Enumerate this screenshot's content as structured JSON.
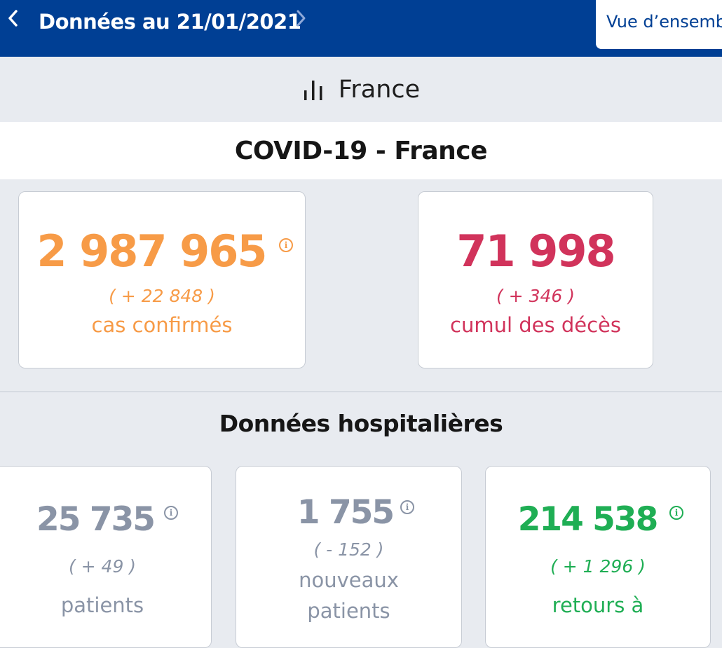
{
  "header": {
    "date_title": "Données au 21/01/2021",
    "overview_label": "Vue d’ensemb"
  },
  "region": {
    "name": "France"
  },
  "section": {
    "title": "COVID-19 - France"
  },
  "cards": {
    "cases": {
      "value": "2 987 965",
      "delta": "( + 22 848 )",
      "label": "cas confirmés",
      "color": "#f79b47"
    },
    "deaths": {
      "value": "71 998",
      "delta": "( + 346 )",
      "label": "cumul des décès",
      "color": "#d1335b"
    }
  },
  "hospital": {
    "title": "Données hospitalières",
    "cards": [
      {
        "value": "25 735",
        "delta": "( + 49 )",
        "label": "patients",
        "color": "#8a94a6"
      },
      {
        "value": "1 755",
        "delta": "( - 152 )",
        "label_line1": "nouveaux",
        "label_line2": "patients",
        "color": "#8a94a6"
      },
      {
        "value": "214 538",
        "delta": "( + 1 296 )",
        "label": "retours à",
        "color": "#1fae54"
      }
    ]
  },
  "icons": {
    "prev": "chevron-left-icon",
    "next": "chevron-right-icon",
    "chart": "bar-chart-icon",
    "info": "info-icon"
  }
}
